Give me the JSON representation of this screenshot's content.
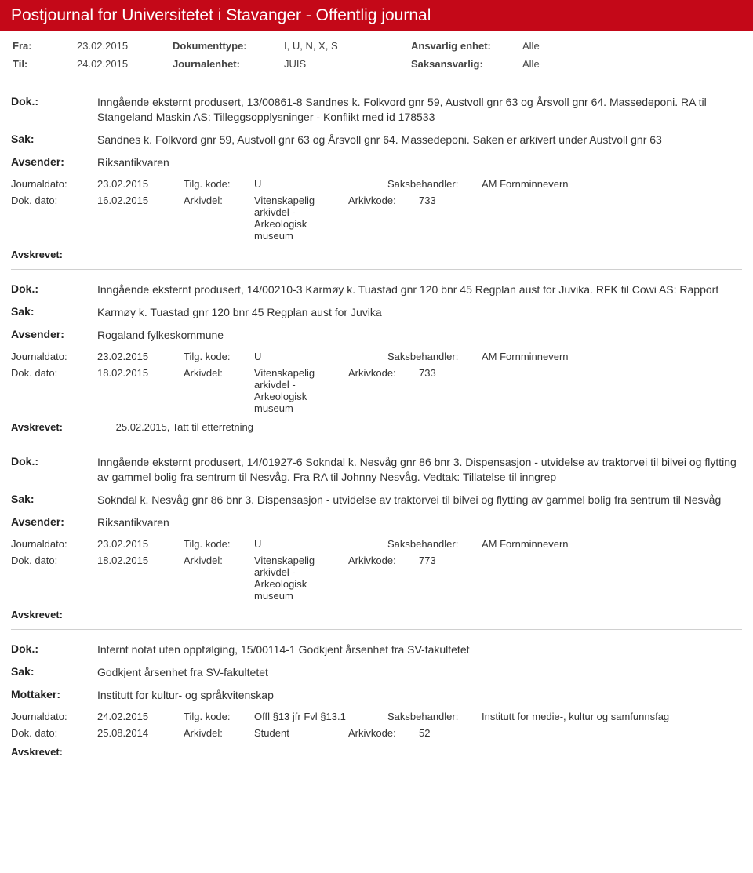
{
  "header": {
    "title": "Postjournal for Universitetet i Stavanger - Offentlig journal"
  },
  "meta": {
    "fra_label": "Fra:",
    "fra": "23.02.2015",
    "til_label": "Til:",
    "til": "24.02.2015",
    "doktype_label": "Dokumenttype:",
    "doktype": "I, U, N, X, S",
    "journalenhet_label": "Journalenhet:",
    "journalenhet": "JUIS",
    "ansvarlig_label": "Ansvarlig enhet:",
    "ansvarlig": "Alle",
    "saksansvarlig_label": "Saksansvarlig:",
    "saksansvarlig": "Alle"
  },
  "labels": {
    "dok": "Dok.:",
    "sak": "Sak:",
    "avsender": "Avsender:",
    "mottaker": "Mottaker:",
    "journaldato": "Journaldato:",
    "tilgkode": "Tilg. kode:",
    "saksbehandler": "Saksbehandler:",
    "dokdato": "Dok. dato:",
    "arkivdel": "Arkivdel:",
    "arkivkode": "Arkivkode:",
    "avskrevet": "Avskrevet:"
  },
  "entries": [
    {
      "dok": "Inngående eksternt produsert, 13/00861-8 Sandnes k. Folkvord gnr 59, Austvoll gnr 63 og Årsvoll gnr 64. Massedeponi. RA til Stangeland Maskin AS: Tilleggsopplysninger - Konflikt med id 178533",
      "sak": "Sandnes k. Folkvord gnr 59, Austvoll gnr 63 og Årsvoll gnr 64. Massedeponi. Saken er arkivert under Austvoll gnr 63",
      "party_label": "Avsender:",
      "party": "Riksantikvaren",
      "journaldato": "23.02.2015",
      "tilgkode": "U",
      "saksbehandler": "AM Fornminnevern",
      "dokdato": "16.02.2015",
      "arkivdel": "Vitenskapelig arkivdel - Arkeologisk museum",
      "arkivkode": "733",
      "avskrevet": ""
    },
    {
      "dok": "Inngående eksternt produsert, 14/00210-3 Karmøy k. Tuastad gnr 120 bnr 45 Regplan aust for Juvika. RFK til Cowi AS: Rapport",
      "sak": "Karmøy k. Tuastad gnr 120 bnr 45 Regplan aust for Juvika",
      "party_label": "Avsender:",
      "party": "Rogaland fylkeskommune",
      "journaldato": "23.02.2015",
      "tilgkode": "U",
      "saksbehandler": "AM Fornminnevern",
      "dokdato": "18.02.2015",
      "arkivdel": "Vitenskapelig arkivdel - Arkeologisk museum",
      "arkivkode": "733",
      "avskrevet": "25.02.2015, Tatt til etterretning"
    },
    {
      "dok": "Inngående eksternt produsert, 14/01927-6 Sokndal k. Nesvåg gnr 86 bnr 3. Dispensasjon - utvidelse av traktorvei til bilvei og flytting av gammel bolig fra sentrum til Nesvåg. Fra RA til Johnny Nesvåg. Vedtak: Tillatelse til inngrep",
      "sak": "Sokndal k. Nesvåg gnr 86 bnr 3. Dispensasjon - utvidelse av traktorvei til bilvei og flytting av gammel bolig fra sentrum til Nesvåg",
      "party_label": "Avsender:",
      "party": "Riksantikvaren",
      "journaldato": "23.02.2015",
      "tilgkode": "U",
      "saksbehandler": "AM Fornminnevern",
      "dokdato": "18.02.2015",
      "arkivdel": "Vitenskapelig arkivdel - Arkeologisk museum",
      "arkivkode": "773",
      "avskrevet": ""
    },
    {
      "dok": "Internt notat uten oppfølging, 15/00114-1 Godkjent årsenhet fra SV-fakultetet",
      "sak": "Godkjent årsenhet fra SV-fakultetet",
      "party_label": "Mottaker:",
      "party": "Institutt for kultur- og språkvitenskap",
      "journaldato": "24.02.2015",
      "tilgkode": "Offl §13 jfr Fvl §13.1",
      "saksbehandler": "Institutt for medie-, kultur og samfunnsfag",
      "dokdato": "25.08.2014",
      "arkivdel": "Student",
      "arkivkode": "52",
      "avskrevet": ""
    }
  ]
}
